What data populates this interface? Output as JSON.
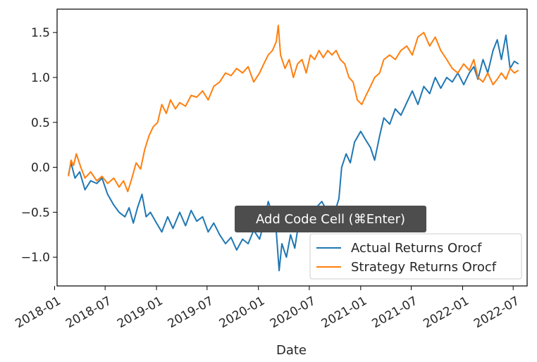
{
  "chart_data": {
    "type": "line",
    "xlabel": "Date",
    "ylabel": "",
    "xlim": [
      "2018-01-10",
      "2022-08-20"
    ],
    "ylim": [
      -1.32,
      1.76
    ],
    "x_ticks": [
      "2018-01",
      "2018-07",
      "2019-01",
      "2019-07",
      "2020-01",
      "2020-07",
      "2021-01",
      "2021-07",
      "2022-01",
      "2022-07"
    ],
    "y_ticks": [
      -1.0,
      -0.5,
      0.0,
      0.5,
      1.0,
      1.5
    ],
    "y_tick_labels": [
      "−1.0",
      "−0.5",
      "0.0",
      "0.5",
      "1.0",
      "1.5"
    ],
    "grid": false,
    "legend_position": "lower-right",
    "series": [
      {
        "name": "Actual Returns Orocf",
        "color": "#1f77b4",
        "points": [
          [
            "2018-02-20",
            -0.08
          ],
          [
            "2018-03-01",
            0.05
          ],
          [
            "2018-03-15",
            -0.12
          ],
          [
            "2018-04-01",
            -0.05
          ],
          [
            "2018-04-20",
            -0.25
          ],
          [
            "2018-05-10",
            -0.15
          ],
          [
            "2018-06-01",
            -0.18
          ],
          [
            "2018-06-20",
            -0.12
          ],
          [
            "2018-07-10",
            -0.3
          ],
          [
            "2018-08-01",
            -0.42
          ],
          [
            "2018-08-20",
            -0.5
          ],
          [
            "2018-09-10",
            -0.55
          ],
          [
            "2018-09-25",
            -0.45
          ],
          [
            "2018-10-10",
            -0.62
          ],
          [
            "2018-10-25",
            -0.45
          ],
          [
            "2018-11-10",
            -0.3
          ],
          [
            "2018-11-25",
            -0.55
          ],
          [
            "2018-12-10",
            -0.5
          ],
          [
            "2019-01-01",
            -0.62
          ],
          [
            "2019-01-20",
            -0.72
          ],
          [
            "2019-02-10",
            -0.55
          ],
          [
            "2019-03-01",
            -0.68
          ],
          [
            "2019-03-25",
            -0.5
          ],
          [
            "2019-04-15",
            -0.65
          ],
          [
            "2019-05-05",
            -0.48
          ],
          [
            "2019-05-25",
            -0.6
          ],
          [
            "2019-06-15",
            -0.55
          ],
          [
            "2019-07-05",
            -0.72
          ],
          [
            "2019-07-25",
            -0.62
          ],
          [
            "2019-08-15",
            -0.75
          ],
          [
            "2019-09-05",
            -0.85
          ],
          [
            "2019-09-25",
            -0.78
          ],
          [
            "2019-10-15",
            -0.92
          ],
          [
            "2019-11-05",
            -0.8
          ],
          [
            "2019-11-25",
            -0.85
          ],
          [
            "2019-12-15",
            -0.7
          ],
          [
            "2020-01-05",
            -0.8
          ],
          [
            "2020-01-20",
            -0.62
          ],
          [
            "2020-02-05",
            -0.38
          ],
          [
            "2020-02-20",
            -0.52
          ],
          [
            "2020-03-05",
            -0.72
          ],
          [
            "2020-03-15",
            -1.15
          ],
          [
            "2020-03-25",
            -0.85
          ],
          [
            "2020-04-10",
            -1.0
          ],
          [
            "2020-04-25",
            -0.75
          ],
          [
            "2020-05-10",
            -0.9
          ],
          [
            "2020-05-25",
            -0.6
          ],
          [
            "2020-06-15",
            -0.5
          ],
          [
            "2020-07-05",
            -0.62
          ],
          [
            "2020-07-25",
            -0.45
          ],
          [
            "2020-08-15",
            -0.38
          ],
          [
            "2020-09-05",
            -0.5
          ],
          [
            "2020-09-25",
            -0.55
          ],
          [
            "2020-10-15",
            -0.35
          ],
          [
            "2020-10-25",
            0.0
          ],
          [
            "2020-11-10",
            0.15
          ],
          [
            "2020-11-25",
            0.05
          ],
          [
            "2020-12-10",
            0.28
          ],
          [
            "2021-01-01",
            0.4
          ],
          [
            "2021-01-20",
            0.3
          ],
          [
            "2021-02-05",
            0.22
          ],
          [
            "2021-02-20",
            0.08
          ],
          [
            "2021-03-10",
            0.35
          ],
          [
            "2021-03-25",
            0.55
          ],
          [
            "2021-04-15",
            0.48
          ],
          [
            "2021-05-05",
            0.65
          ],
          [
            "2021-05-25",
            0.58
          ],
          [
            "2021-06-15",
            0.72
          ],
          [
            "2021-07-05",
            0.85
          ],
          [
            "2021-07-25",
            0.7
          ],
          [
            "2021-08-15",
            0.9
          ],
          [
            "2021-09-05",
            0.82
          ],
          [
            "2021-09-25",
            1.0
          ],
          [
            "2021-10-15",
            0.88
          ],
          [
            "2021-11-05",
            1.0
          ],
          [
            "2021-11-25",
            0.95
          ],
          [
            "2021-12-15",
            1.05
          ],
          [
            "2022-01-05",
            0.92
          ],
          [
            "2022-01-25",
            1.05
          ],
          [
            "2022-02-10",
            1.12
          ],
          [
            "2022-02-25",
            0.98
          ],
          [
            "2022-03-15",
            1.2
          ],
          [
            "2022-04-01",
            1.05
          ],
          [
            "2022-04-20",
            1.3
          ],
          [
            "2022-05-05",
            1.42
          ],
          [
            "2022-05-20",
            1.2
          ],
          [
            "2022-06-05",
            1.47
          ],
          [
            "2022-06-20",
            1.1
          ],
          [
            "2022-07-05",
            1.18
          ],
          [
            "2022-07-20",
            1.15
          ]
        ]
      },
      {
        "name": "Strategy Returns Orocf",
        "color": "#ff7f0e",
        "points": [
          [
            "2018-02-20",
            -0.1
          ],
          [
            "2018-03-01",
            0.08
          ],
          [
            "2018-03-10",
            0.02
          ],
          [
            "2018-03-20",
            0.15
          ],
          [
            "2018-04-05",
            0.0
          ],
          [
            "2018-04-20",
            -0.12
          ],
          [
            "2018-05-10",
            -0.05
          ],
          [
            "2018-06-01",
            -0.15
          ],
          [
            "2018-06-20",
            -0.1
          ],
          [
            "2018-07-10",
            -0.18
          ],
          [
            "2018-08-01",
            -0.12
          ],
          [
            "2018-08-20",
            -0.22
          ],
          [
            "2018-09-05",
            -0.15
          ],
          [
            "2018-09-20",
            -0.27
          ],
          [
            "2018-10-05",
            -0.12
          ],
          [
            "2018-10-20",
            0.05
          ],
          [
            "2018-11-05",
            -0.02
          ],
          [
            "2018-11-20",
            0.2
          ],
          [
            "2018-12-05",
            0.35
          ],
          [
            "2018-12-20",
            0.45
          ],
          [
            "2019-01-05",
            0.5
          ],
          [
            "2019-01-20",
            0.7
          ],
          [
            "2019-02-05",
            0.6
          ],
          [
            "2019-02-20",
            0.75
          ],
          [
            "2019-03-10",
            0.65
          ],
          [
            "2019-03-25",
            0.72
          ],
          [
            "2019-04-15",
            0.68
          ],
          [
            "2019-05-05",
            0.8
          ],
          [
            "2019-05-25",
            0.78
          ],
          [
            "2019-06-15",
            0.85
          ],
          [
            "2019-07-05",
            0.75
          ],
          [
            "2019-07-25",
            0.9
          ],
          [
            "2019-08-15",
            0.95
          ],
          [
            "2019-09-05",
            1.05
          ],
          [
            "2019-09-25",
            1.02
          ],
          [
            "2019-10-15",
            1.1
          ],
          [
            "2019-11-05",
            1.05
          ],
          [
            "2019-11-25",
            1.12
          ],
          [
            "2019-12-15",
            0.95
          ],
          [
            "2020-01-05",
            1.05
          ],
          [
            "2020-01-20",
            1.15
          ],
          [
            "2020-02-05",
            1.25
          ],
          [
            "2020-02-20",
            1.3
          ],
          [
            "2020-03-05",
            1.4
          ],
          [
            "2020-03-12",
            1.58
          ],
          [
            "2020-03-20",
            1.25
          ],
          [
            "2020-04-05",
            1.1
          ],
          [
            "2020-04-20",
            1.2
          ],
          [
            "2020-05-05",
            1.0
          ],
          [
            "2020-05-20",
            1.15
          ],
          [
            "2020-06-05",
            1.2
          ],
          [
            "2020-06-20",
            1.05
          ],
          [
            "2020-07-05",
            1.25
          ],
          [
            "2020-07-20",
            1.2
          ],
          [
            "2020-08-05",
            1.3
          ],
          [
            "2020-08-20",
            1.22
          ],
          [
            "2020-09-05",
            1.3
          ],
          [
            "2020-09-20",
            1.25
          ],
          [
            "2020-10-05",
            1.3
          ],
          [
            "2020-10-20",
            1.2
          ],
          [
            "2020-11-05",
            1.15
          ],
          [
            "2020-11-20",
            1.0
          ],
          [
            "2020-12-05",
            0.95
          ],
          [
            "2020-12-20",
            0.75
          ],
          [
            "2021-01-05",
            0.7
          ],
          [
            "2021-01-20",
            0.8
          ],
          [
            "2021-02-05",
            0.9
          ],
          [
            "2021-02-20",
            1.0
          ],
          [
            "2021-03-10",
            1.05
          ],
          [
            "2021-03-25",
            1.2
          ],
          [
            "2021-04-15",
            1.25
          ],
          [
            "2021-05-05",
            1.2
          ],
          [
            "2021-05-25",
            1.3
          ],
          [
            "2021-06-15",
            1.35
          ],
          [
            "2021-07-05",
            1.25
          ],
          [
            "2021-07-25",
            1.45
          ],
          [
            "2021-08-15",
            1.5
          ],
          [
            "2021-09-05",
            1.35
          ],
          [
            "2021-09-25",
            1.45
          ],
          [
            "2021-10-15",
            1.3
          ],
          [
            "2021-11-05",
            1.2
          ],
          [
            "2021-11-25",
            1.1
          ],
          [
            "2021-12-15",
            1.05
          ],
          [
            "2022-01-05",
            1.15
          ],
          [
            "2022-01-25",
            1.08
          ],
          [
            "2022-02-10",
            1.2
          ],
          [
            "2022-02-25",
            1.0
          ],
          [
            "2022-03-15",
            0.95
          ],
          [
            "2022-04-01",
            1.05
          ],
          [
            "2022-04-20",
            0.92
          ],
          [
            "2022-05-05",
            0.98
          ],
          [
            "2022-05-20",
            1.05
          ],
          [
            "2022-06-05",
            0.98
          ],
          [
            "2022-06-20",
            1.1
          ],
          [
            "2022-07-05",
            1.05
          ],
          [
            "2022-07-20",
            1.08
          ]
        ]
      }
    ]
  },
  "tooltip": {
    "text": "Add Code Cell (⌘Enter)"
  }
}
